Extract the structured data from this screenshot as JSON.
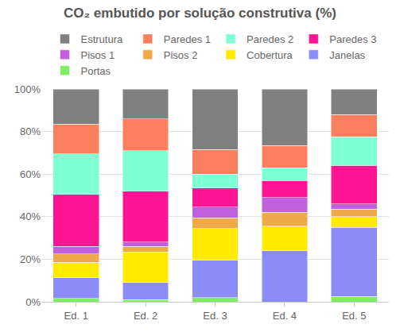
{
  "chart_data": {
    "type": "bar",
    "title": "CO₂ embutido por solução construtiva (%)",
    "stacked": true,
    "grid": true,
    "legend": "top",
    "categories": [
      "Ed. 1",
      "Ed. 2",
      "Ed. 3",
      "Ed. 4",
      "Ed. 5"
    ],
    "series": [
      {
        "name": "Estrutura",
        "color": "#808080",
        "values": [
          16.5,
          14,
          28.5,
          26.5,
          12
        ]
      },
      {
        "name": "Paredes 1",
        "color": "#fa7f5e",
        "values": [
          14,
          15,
          11.5,
          10.5,
          10.5
        ]
      },
      {
        "name": "Paredes 2",
        "color": "#7fffd4",
        "values": [
          19,
          19,
          6.5,
          6,
          13.5
        ]
      },
      {
        "name": "Paredes 3",
        "color": "#ff1493",
        "values": [
          24.5,
          24,
          9,
          8,
          18
        ]
      },
      {
        "name": "Pisos 1",
        "color": "#c060dc",
        "values": [
          3.5,
          2,
          5,
          7,
          2.5
        ]
      },
      {
        "name": "Pisos 2",
        "color": "#eea94a",
        "values": [
          4,
          2.5,
          5,
          6.5,
          3.5
        ]
      },
      {
        "name": "Cobertura",
        "color": "#ffea00",
        "values": [
          7,
          14.5,
          15,
          11.5,
          5
        ]
      },
      {
        "name": "Janelas",
        "color": "#8c8cf8",
        "values": [
          10,
          8,
          17.5,
          24,
          32.5
        ]
      },
      {
        "name": "Portas",
        "color": "#7fee64",
        "values": [
          1.5,
          1,
          2,
          0,
          2.5
        ]
      }
    ],
    "ylim": [
      0,
      100
    ],
    "yticks": [
      {
        "value": 0,
        "label": "0%"
      },
      {
        "value": 20,
        "label": "20%"
      },
      {
        "value": 40,
        "label": "40%"
      },
      {
        "value": 60,
        "label": "60%"
      },
      {
        "value": 80,
        "label": "80%"
      },
      {
        "value": 100,
        "label": "100%"
      }
    ]
  }
}
